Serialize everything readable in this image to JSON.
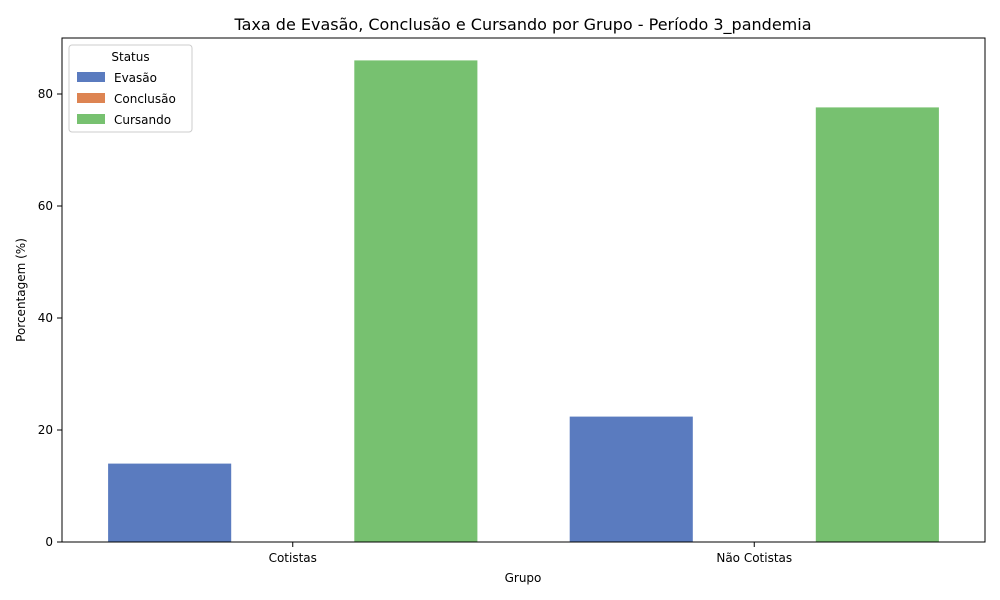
{
  "chart_data": {
    "type": "bar",
    "title": "Taxa de Evasão, Conclusão e Cursando por Grupo - Período 3_pandemia",
    "xlabel": "Grupo",
    "ylabel": "Porcentagem (%)",
    "categories": [
      "Cotistas",
      "Não Cotistas"
    ],
    "series": [
      {
        "name": "Evasão",
        "color": "#5a7bbf",
        "values": [
          14.0,
          22.4
        ]
      },
      {
        "name": "Conclusão",
        "color": "#dd8452",
        "values": [
          0,
          0
        ]
      },
      {
        "name": "Cursando",
        "color": "#77c170",
        "values": [
          86.0,
          77.6
        ]
      }
    ],
    "ylim": [
      0,
      90
    ],
    "yticks": [
      0,
      20,
      40,
      60,
      80
    ],
    "legend": {
      "title": "Status",
      "placement": "top-left"
    },
    "grid": false
  }
}
